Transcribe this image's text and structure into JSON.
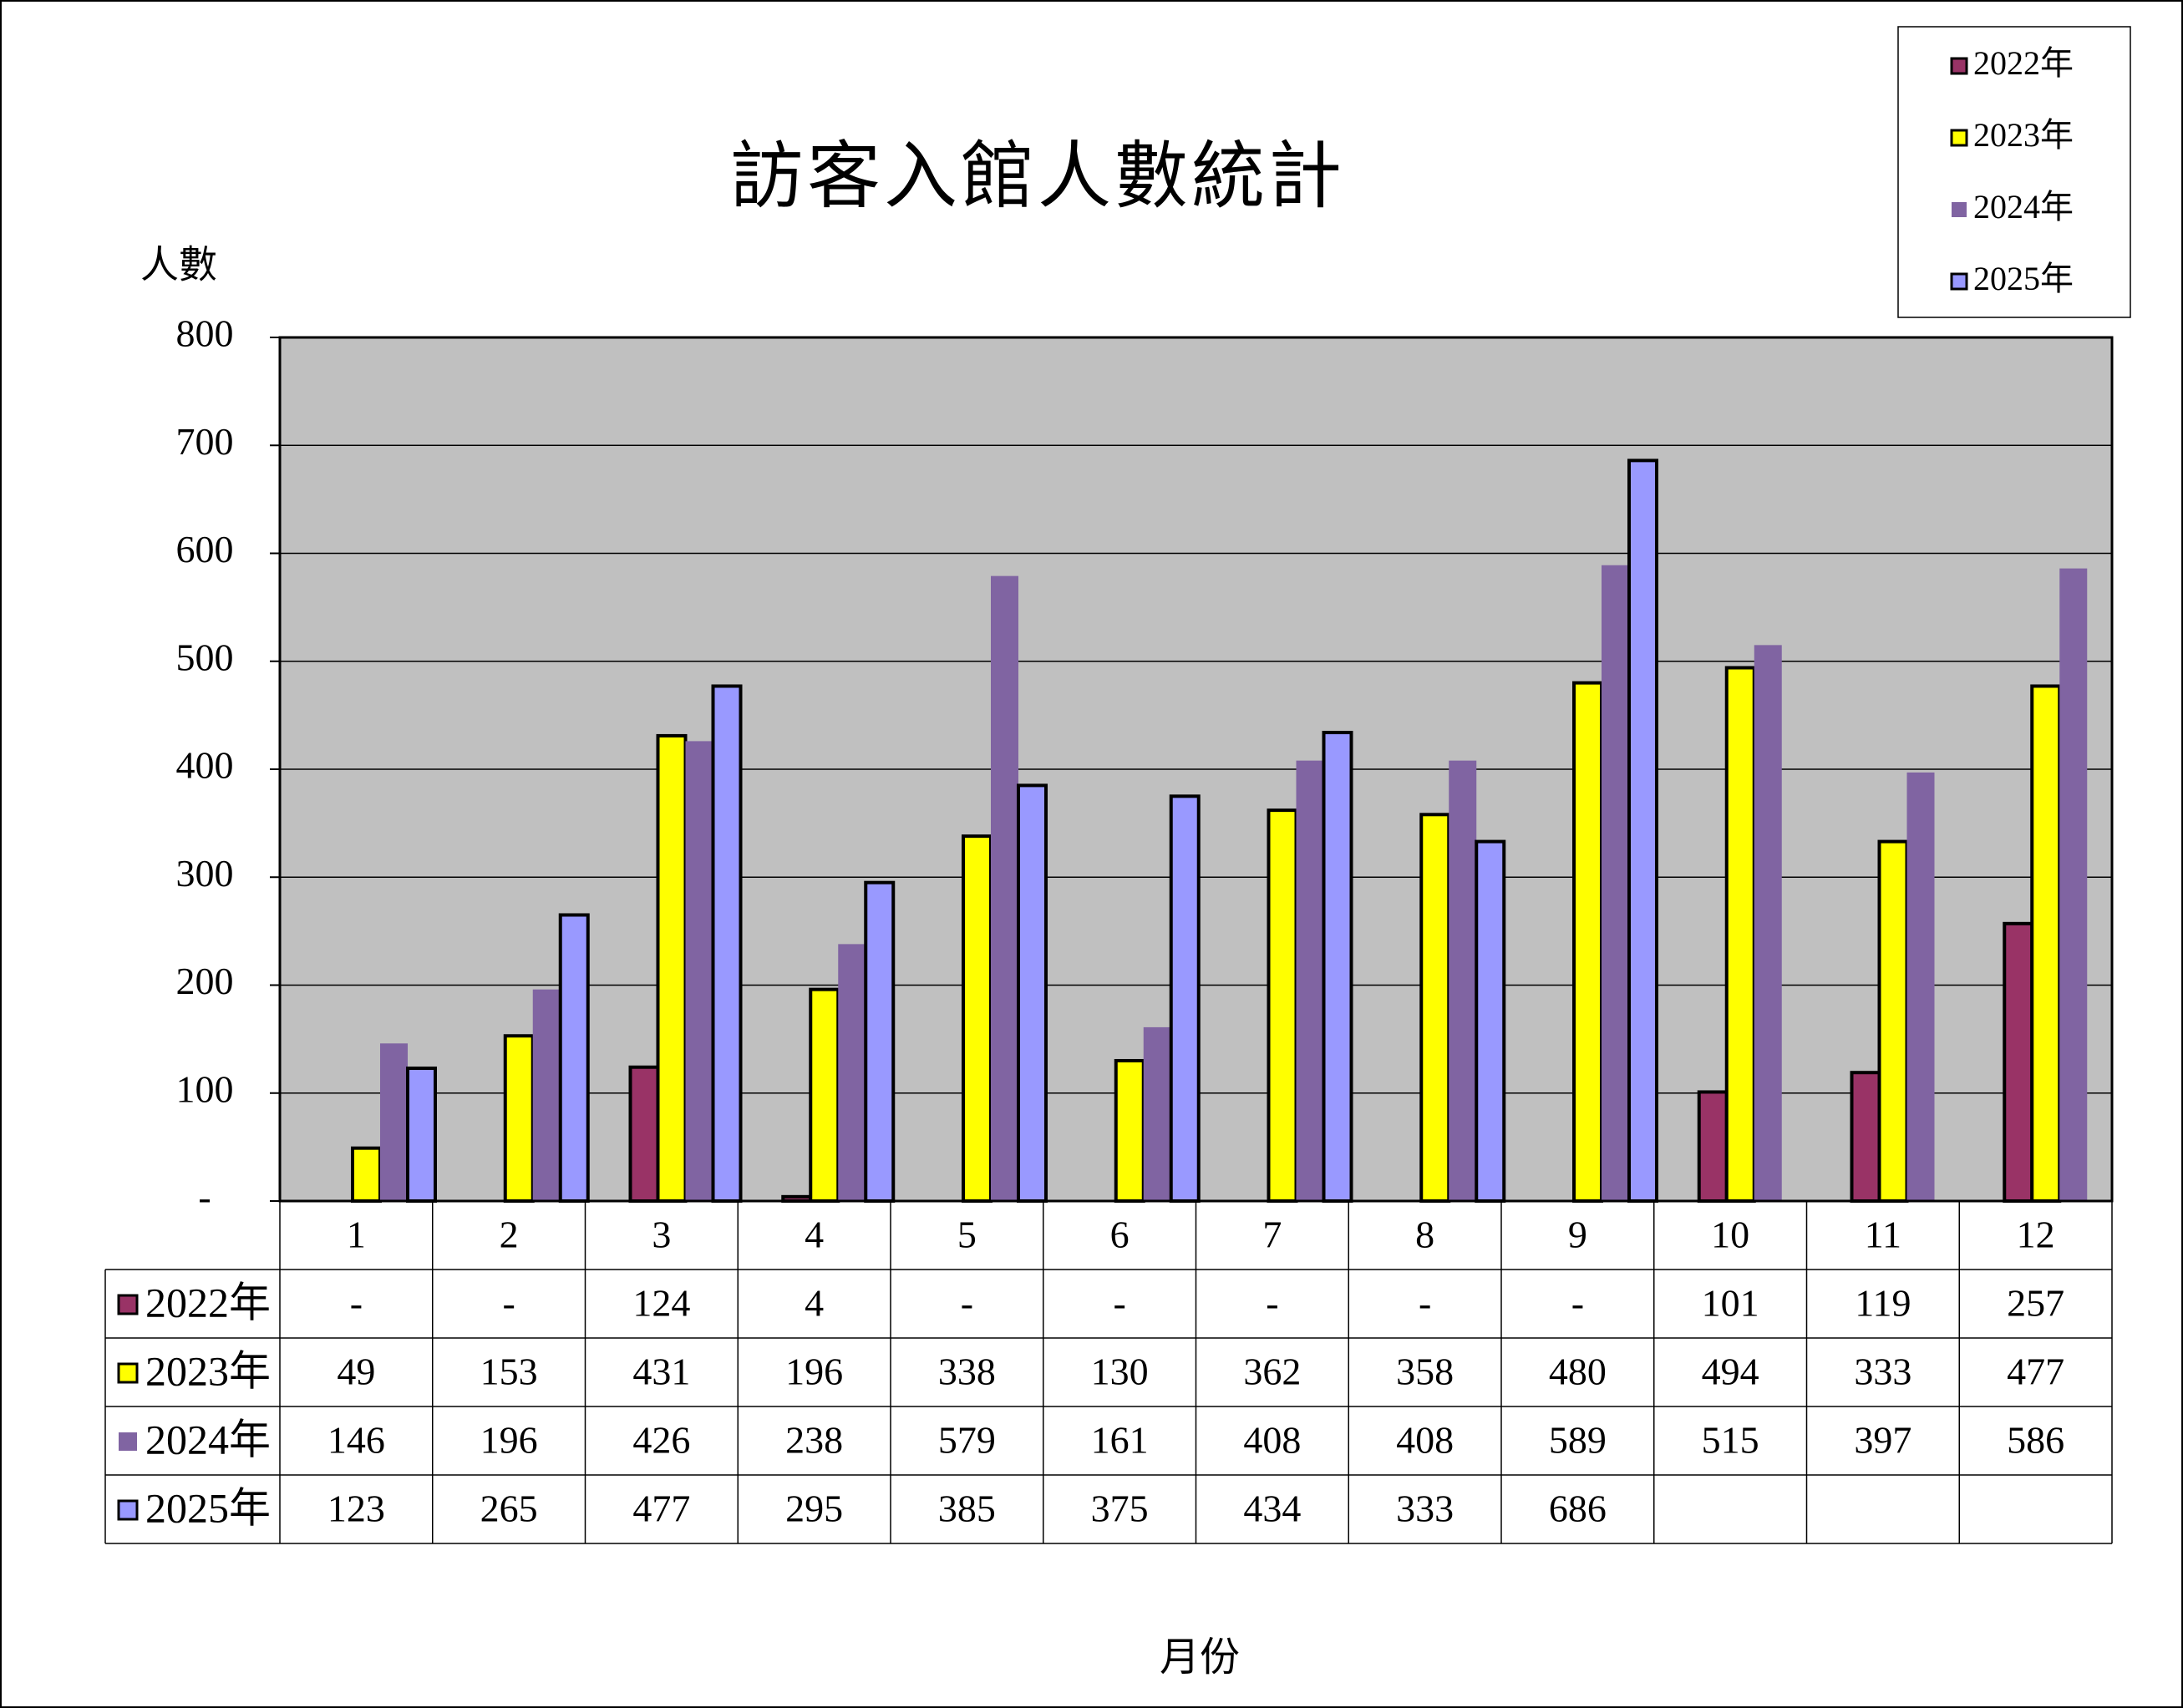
{
  "chart_data": {
    "type": "bar",
    "title": "訪客入館人數統計",
    "ylabel": "人數",
    "xlabel": "月份",
    "categories": [
      "1",
      "2",
      "3",
      "4",
      "5",
      "6",
      "7",
      "8",
      "9",
      "10",
      "11",
      "12"
    ],
    "ylim": [
      0,
      800
    ],
    "yticks": [
      0,
      100,
      200,
      300,
      400,
      500,
      600,
      700,
      800
    ],
    "ytick_labels": [
      "-",
      "100",
      "200",
      "300",
      "400",
      "500",
      "600",
      "700",
      "800"
    ],
    "grid": true,
    "legend_position": "top-right",
    "missing_value_label": "-",
    "series": [
      {
        "name": "2022年",
        "color": "#993366",
        "outlined": true,
        "values": [
          null,
          null,
          124,
          4,
          null,
          null,
          null,
          null,
          null,
          101,
          119,
          257
        ]
      },
      {
        "name": "2023年",
        "color": "#FFFF00",
        "outlined": true,
        "values": [
          49,
          153,
          431,
          196,
          338,
          130,
          362,
          358,
          480,
          494,
          333,
          477
        ]
      },
      {
        "name": "2024年",
        "color": "#8064A2",
        "outlined": false,
        "values": [
          146,
          196,
          426,
          238,
          579,
          161,
          408,
          408,
          589,
          515,
          397,
          586
        ]
      },
      {
        "name": "2025年",
        "color": "#9999FF",
        "outlined": true,
        "values": [
          123,
          265,
          477,
          295,
          385,
          375,
          434,
          333,
          686,
          null,
          null,
          null
        ]
      }
    ]
  },
  "style": {
    "plot_background": "#C0C0C0",
    "grid_color": "#000000",
    "border_color": "#000000",
    "text_color": "#000000"
  }
}
